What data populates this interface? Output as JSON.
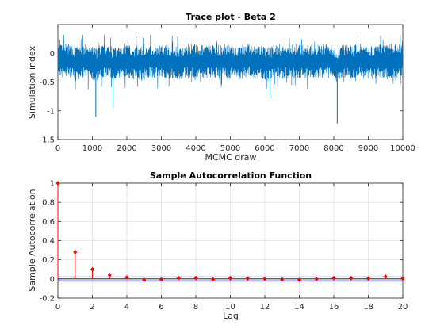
{
  "chart_data": [
    {
      "type": "line",
      "title": "Trace plot - Beta 2",
      "xlabel": "MCMC draw",
      "ylabel": "Simulation index",
      "xlim": [
        0,
        10000
      ],
      "ylim": [
        -1.5,
        0.5
      ],
      "xticks": [
        0,
        1000,
        2000,
        3000,
        4000,
        5000,
        6000,
        7000,
        8000,
        9000,
        10000
      ],
      "yticks": [
        -1.5,
        -1,
        -0.5,
        0
      ],
      "grid": false,
      "series_color": "#0072BD",
      "series": [
        {
          "x": [
            0,
            250,
            500,
            750,
            1000,
            1100,
            1250,
            1500,
            1600,
            1750,
            2000,
            2250,
            2500,
            2750,
            3000,
            3250,
            3500,
            3750,
            4000,
            4250,
            4500,
            4750,
            5000,
            5250,
            5500,
            5750,
            6000,
            6150,
            6250,
            6500,
            6750,
            7000,
            7250,
            7500,
            7750,
            8000,
            8100,
            8250,
            8500,
            8750,
            9000,
            9250,
            9500,
            9750,
            10000
          ],
          "y": [
            -0.15,
            -0.12,
            -0.18,
            -0.14,
            -0.16,
            -1.1,
            -0.13,
            -0.15,
            -0.95,
            -0.14,
            -0.12,
            -0.17,
            -0.15,
            -0.13,
            -0.16,
            -0.14,
            -0.18,
            -0.12,
            -0.15,
            -0.16,
            -0.13,
            -0.15,
            -0.14,
            -0.17,
            -0.13,
            -0.15,
            -0.16,
            -0.78,
            -0.14,
            -0.15,
            -0.13,
            -0.16,
            -0.14,
            -0.15,
            -0.12,
            -0.16,
            -1.22,
            -0.14,
            -0.15,
            -0.13,
            -0.16,
            -0.14,
            -0.15,
            -0.13,
            -0.15
          ]
        }
      ]
    },
    {
      "type": "stem",
      "title": "Sample Autocorrelation Function",
      "xlabel": "Lag",
      "ylabel": "Sample Autocorrelation",
      "xlim": [
        0,
        20
      ],
      "ylim": [
        -0.2,
        1
      ],
      "xticks": [
        0,
        2,
        4,
        6,
        8,
        10,
        12,
        14,
        16,
        18,
        20
      ],
      "yticks": [
        -0.2,
        0,
        0.2,
        0.4,
        0.6,
        0.8,
        1
      ],
      "grid": true,
      "stem_color": "#FF0000",
      "bound_color": "#0000FF",
      "lags": [
        0,
        1,
        2,
        3,
        4,
        5,
        6,
        7,
        8,
        9,
        10,
        11,
        12,
        13,
        14,
        15,
        16,
        17,
        18,
        19,
        20
      ],
      "values": [
        1,
        0.28,
        0.1,
        0.04,
        0.015,
        -0.01,
        -0.005,
        0.01,
        0.01,
        -0.005,
        0.008,
        0.005,
        0.002,
        -0.005,
        -0.01,
        0.0,
        0.008,
        0.007,
        0.005,
        0.025,
        0.005
      ],
      "confidence_bounds": [
        0.02,
        -0.02
      ]
    }
  ]
}
